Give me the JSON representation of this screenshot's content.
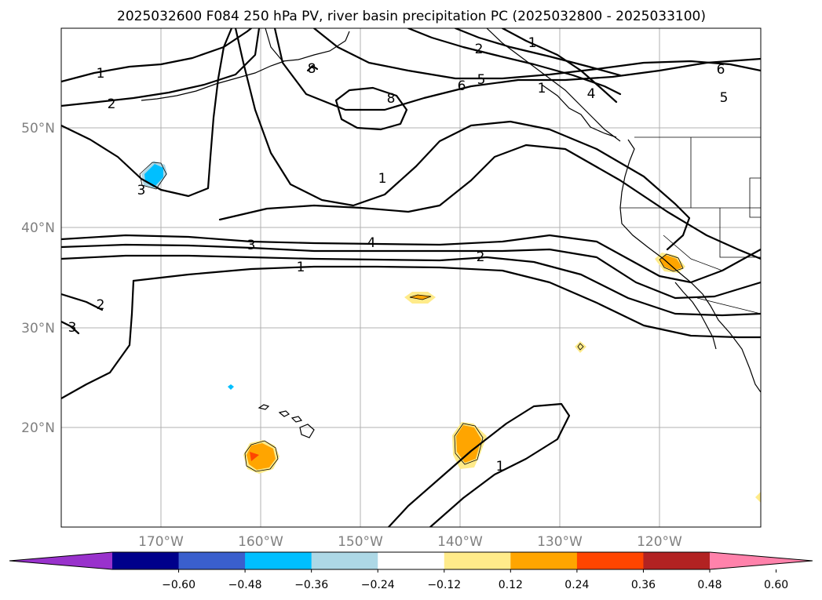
{
  "title": "2025032600 F084 250 hPa PV, river basin precipitation PC (2025032800 - 2025033100)",
  "lat_labels": [
    "50°N",
    "40°N",
    "30°N",
    "20°N"
  ],
  "lon_labels": [
    "170°W",
    "160°W",
    "150°W",
    "140°W",
    "130°W",
    "120°W"
  ],
  "contour_labels": [
    "1",
    "2",
    "1",
    "8",
    "2",
    "1",
    "6",
    "5",
    "6",
    "5",
    "4",
    "8",
    "3",
    "1",
    "3",
    "4",
    "2",
    "1",
    "2",
    "3",
    "1"
  ],
  "colorbar": {
    "ticks": [
      "−0.60",
      "−0.48",
      "−0.36",
      "−0.24",
      "−0.12",
      "0.12",
      "0.24",
      "0.36",
      "0.48",
      "0.60"
    ],
    "colors": [
      "#9932cc",
      "#00008b",
      "#3a5fcd",
      "#00bfff",
      "#add8e6",
      "#ffffff",
      "#ffeb8a",
      "#ffa500",
      "#ff4500",
      "#b22222",
      "#ff82ab"
    ]
  }
}
